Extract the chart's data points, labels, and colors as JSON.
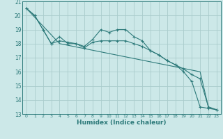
{
  "title": "",
  "xlabel": "Humidex (Indice chaleur)",
  "bg_color": "#cce8e8",
  "line_color": "#2d7a7a",
  "grid_color": "#aacccc",
  "xlim": [
    -0.5,
    23.5
  ],
  "ylim": [
    13,
    21
  ],
  "yticks": [
    13,
    14,
    15,
    16,
    17,
    18,
    19,
    20,
    21
  ],
  "xticks": [
    0,
    1,
    2,
    3,
    4,
    5,
    6,
    7,
    8,
    9,
    10,
    11,
    12,
    13,
    14,
    15,
    16,
    17,
    18,
    19,
    20,
    21,
    22,
    23
  ],
  "lines": [
    {
      "x": [
        0,
        1,
        2,
        3,
        4,
        5,
        6,
        7,
        8,
        9,
        10,
        11,
        12,
        13,
        14,
        15,
        16,
        17,
        18,
        19,
        20,
        21,
        22,
        23
      ],
      "y": [
        20.5,
        20.0,
        19.0,
        18.0,
        18.5,
        18.0,
        18.0,
        17.8,
        18.3,
        19.0,
        18.8,
        19.0,
        19.0,
        18.5,
        18.2,
        17.5,
        17.2,
        16.8,
        16.5,
        16.0,
        15.3,
        13.5,
        13.4,
        13.3
      ],
      "marker": "+"
    },
    {
      "x": [
        0,
        1,
        2,
        3,
        4,
        5,
        6,
        7,
        8,
        9,
        10,
        11,
        12,
        13,
        14,
        15,
        16,
        17,
        18,
        19,
        20,
        21,
        22,
        23
      ],
      "y": [
        20.5,
        20.0,
        19.0,
        18.0,
        18.2,
        18.1,
        18.0,
        17.7,
        18.1,
        18.2,
        18.2,
        18.2,
        18.2,
        18.0,
        17.8,
        17.5,
        17.2,
        16.8,
        16.5,
        16.2,
        15.8,
        15.5,
        13.5,
        13.3
      ],
      "marker": "+"
    },
    {
      "x": [
        0,
        4,
        21,
        22,
        23
      ],
      "y": [
        20.5,
        18.0,
        16.0,
        13.5,
        13.3
      ],
      "marker": null
    }
  ]
}
